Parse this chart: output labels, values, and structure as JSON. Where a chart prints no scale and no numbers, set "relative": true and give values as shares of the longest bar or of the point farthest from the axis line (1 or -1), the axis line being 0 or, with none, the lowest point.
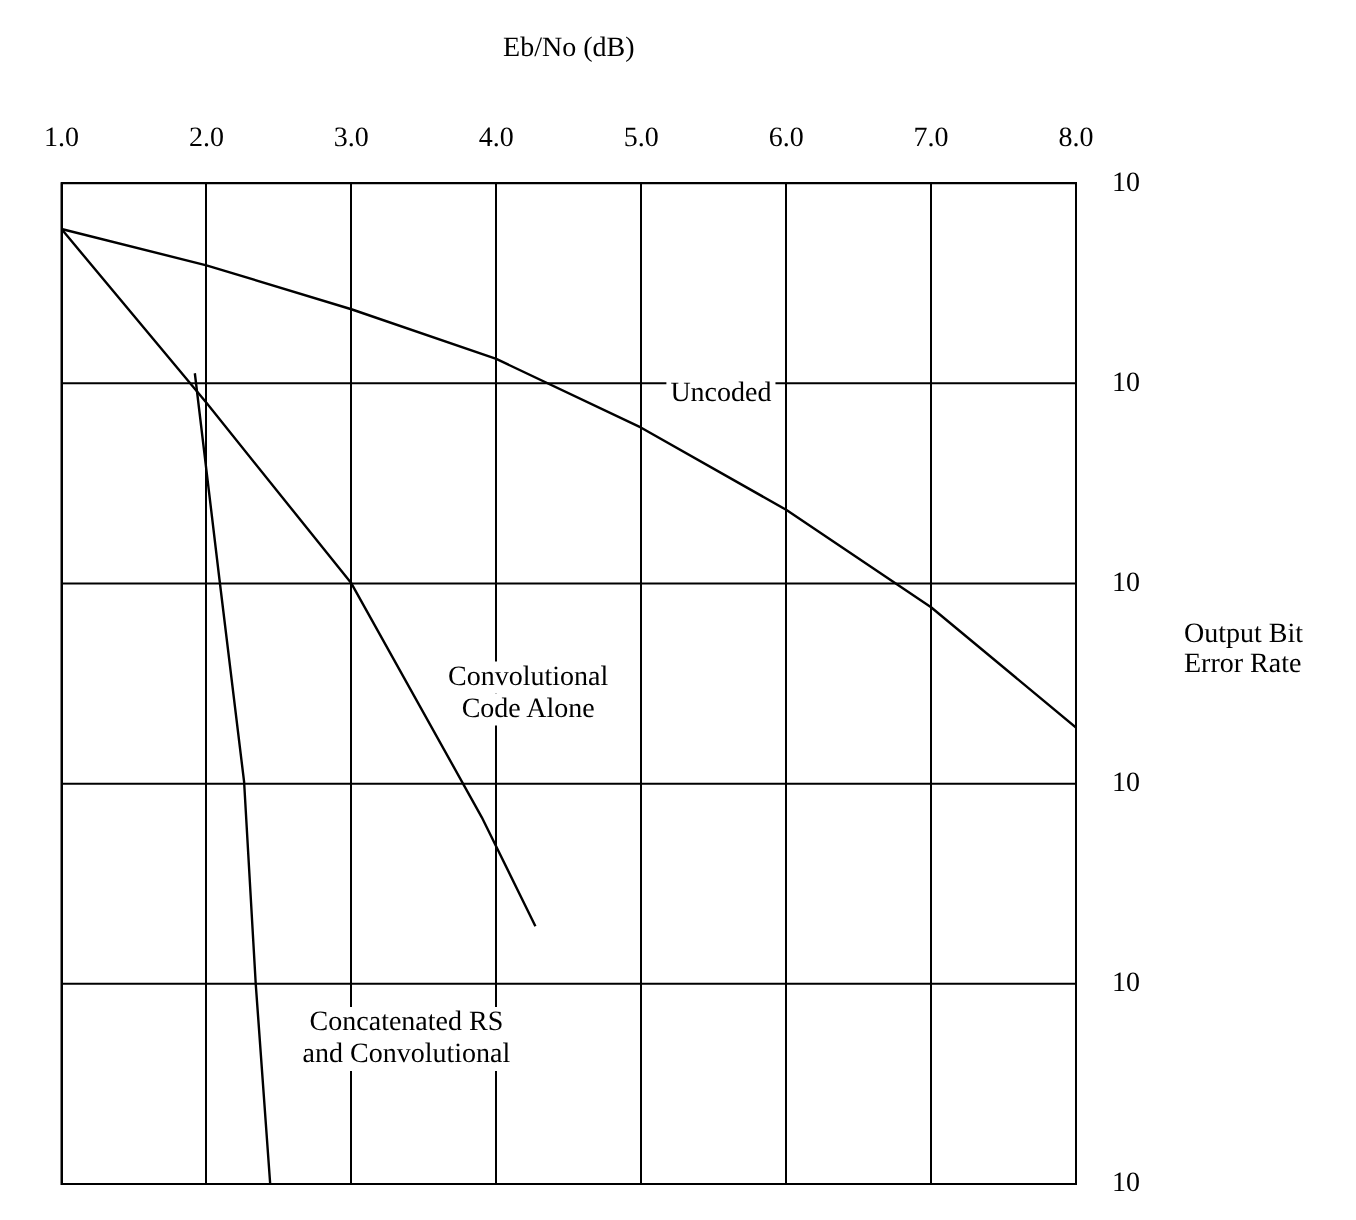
{
  "chart_data": {
    "type": "line",
    "xlabel": "Eb/No (dB)",
    "ylabel": "Output Bit Error Rate",
    "relative": true,
    "xlim": [
      1,
      8
    ],
    "xticks": [
      {
        "value": 1,
        "label": "1.0"
      },
      {
        "value": 2,
        "label": "2.0"
      },
      {
        "value": 3,
        "label": "3.0"
      },
      {
        "value": 4,
        "label": "4.0"
      },
      {
        "value": 5,
        "label": "5.0"
      },
      {
        "value": 6,
        "label": "6.0"
      },
      {
        "value": 7,
        "label": "7.0"
      },
      {
        "value": 8,
        "label": "8.0"
      }
    ],
    "grid": true,
    "marker": "none",
    "line_style": "solid",
    "series": [
      {
        "color": "#000000",
        "x": [
          1,
          2,
          3,
          4,
          5,
          6,
          7,
          8
        ],
        "values": [
          1,
          0.962,
          0.916,
          0.864,
          0.792,
          0.706,
          0.604,
          0.478
        ]
      },
      {
        "color": "#000000",
        "x": [
          1,
          2,
          3,
          3.9,
          4.27
        ],
        "values": [
          1,
          0.818,
          0.629,
          0.384,
          0.27
        ]
      },
      {
        "color": "#000000",
        "x": [
          1.92,
          2.09,
          2.26,
          2.34,
          2.44
        ],
        "values": [
          0.849,
          0.633,
          0.421,
          0.21,
          0
        ]
      }
    ],
    "annotations": [
      "Uncoded",
      "Convolutional\nCode Alone",
      "Concatenated RS\nand Convolutional",
      "10",
      "10",
      "10",
      "10",
      "10",
      "10"
    ]
  }
}
